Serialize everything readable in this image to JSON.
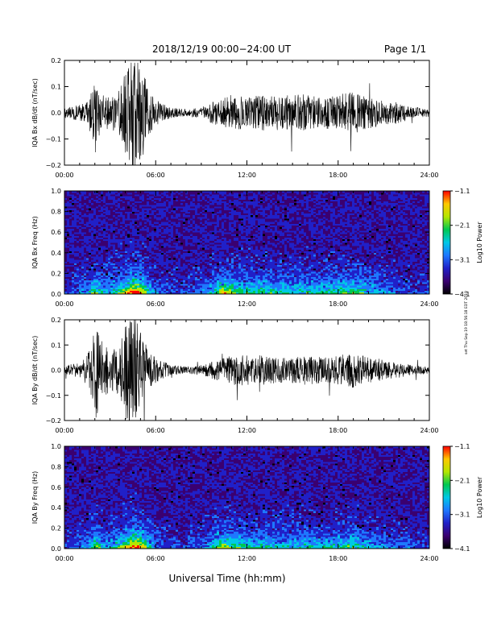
{
  "header": {
    "title": "2018/12/19   00:00−24:00 UT",
    "page": "Page 1/1"
  },
  "footer": {
    "xlabel": "Universal Time (hh:mm)"
  },
  "side_note": "set Thu Sep 19 18:56:18 EDT 2019",
  "colormap": [
    "#000000",
    "#3a0070",
    "#2020c8",
    "#1e78ff",
    "#00c8e6",
    "#00c850",
    "#b4e600",
    "#ffc800",
    "#ff0000"
  ],
  "chart_data": [
    {
      "type": "line",
      "name": "bx-waveform",
      "ylabel": "IQA Bx dB/dt (nT/sec)",
      "ylim": [
        -0.2,
        0.2
      ],
      "yticks": [
        -0.2,
        -0.1,
        0.0,
        0.1,
        0.2
      ],
      "ytick_labels": [
        "−0.2",
        "−0.1",
        "0.0",
        "0.1",
        "0.2"
      ],
      "xlim": [
        0,
        24
      ],
      "xticks": [
        0,
        6,
        12,
        18,
        24
      ],
      "xtick_labels": [
        "00:00",
        "06:00",
        "12:00",
        "18:00",
        "24:00"
      ],
      "x_unit": "hours UT",
      "envelope": {
        "x": [
          0,
          1,
          1.5,
          2,
          2.5,
          3,
          3.5,
          4,
          4.5,
          5,
          5.5,
          6,
          7,
          8,
          9,
          10,
          11,
          12,
          13,
          14,
          15,
          16,
          17,
          18,
          19,
          20,
          21,
          22,
          23,
          24
        ],
        "amplitude": [
          0.02,
          0.03,
          0.05,
          0.12,
          0.07,
          0.06,
          0.08,
          0.15,
          0.22,
          0.2,
          0.09,
          0.05,
          0.02,
          0.015,
          0.02,
          0.05,
          0.07,
          0.06,
          0.07,
          0.06,
          0.07,
          0.07,
          0.06,
          0.07,
          0.08,
          0.06,
          0.05,
          0.04,
          0.02,
          0.015
        ]
      }
    },
    {
      "type": "heatmap",
      "name": "bx-spectrogram",
      "ylabel": "IQA Bx Freq (Hz)",
      "ylim": [
        0.0,
        1.0
      ],
      "yticks": [
        0.0,
        0.2,
        0.4,
        0.6,
        0.8,
        1.0
      ],
      "ytick_labels": [
        "0.0",
        "0.2",
        "0.4",
        "0.6",
        "0.8",
        "1.0"
      ],
      "xlim": [
        0,
        24
      ],
      "xticks": [
        0,
        6,
        12,
        18,
        24
      ],
      "xtick_labels": [
        "00:00",
        "06:00",
        "12:00",
        "18:00",
        "24:00"
      ],
      "colorbar": {
        "label": "Log10 Power",
        "range": [
          -4.1,
          -1.1
        ],
        "ticks": [
          "−1.1",
          "−2.1",
          "−3.1",
          "−4.1"
        ]
      },
      "activity": {
        "x": [
          0,
          1.5,
          2,
          2.5,
          3,
          3.5,
          4,
          4.5,
          5,
          5.5,
          6,
          8,
          9.5,
          10,
          10.5,
          11,
          12,
          13,
          14,
          15,
          16,
          17,
          18,
          19,
          20,
          22,
          24
        ],
        "level": [
          0.1,
          0.3,
          0.6,
          0.4,
          0.4,
          0.5,
          0.7,
          1.0,
          0.9,
          0.5,
          0.2,
          0.1,
          0.3,
          0.6,
          0.8,
          0.7,
          0.5,
          0.5,
          0.45,
          0.45,
          0.5,
          0.45,
          0.5,
          0.6,
          0.4,
          0.2,
          0.1
        ]
      }
    },
    {
      "type": "line",
      "name": "by-waveform",
      "ylabel": "IQA By dB/dt (nT/sec)",
      "ylim": [
        -0.2,
        0.2
      ],
      "yticks": [
        -0.2,
        -0.1,
        0.0,
        0.1,
        0.2
      ],
      "ytick_labels": [
        "−0.2",
        "−0.1",
        "0.0",
        "0.1",
        "0.2"
      ],
      "xlim": [
        0,
        24
      ],
      "xticks": [
        0,
        6,
        12,
        18,
        24
      ],
      "xtick_labels": [
        "00:00",
        "06:00",
        "12:00",
        "18:00",
        "24:00"
      ],
      "x_unit": "hours UT",
      "envelope": {
        "x": [
          0,
          1,
          1.5,
          2,
          2.5,
          3,
          3.5,
          4,
          4.5,
          5,
          5.5,
          6,
          7,
          8,
          9,
          10,
          11,
          12,
          13,
          14,
          15,
          16,
          17,
          18,
          19,
          20,
          21,
          22,
          23,
          24
        ],
        "amplitude": [
          0.02,
          0.03,
          0.06,
          0.2,
          0.12,
          0.08,
          0.1,
          0.2,
          0.22,
          0.18,
          0.08,
          0.05,
          0.02,
          0.015,
          0.02,
          0.04,
          0.06,
          0.06,
          0.06,
          0.05,
          0.05,
          0.06,
          0.05,
          0.06,
          0.07,
          0.05,
          0.04,
          0.03,
          0.02,
          0.015
        ]
      }
    },
    {
      "type": "heatmap",
      "name": "by-spectrogram",
      "ylabel": "IQA By Freq (Hz)",
      "ylim": [
        0.0,
        1.0
      ],
      "yticks": [
        0.0,
        0.2,
        0.4,
        0.6,
        0.8,
        1.0
      ],
      "ytick_labels": [
        "0.0",
        "0.2",
        "0.4",
        "0.6",
        "0.8",
        "1.0"
      ],
      "xlim": [
        0,
        24
      ],
      "xticks": [
        0,
        6,
        12,
        18,
        24
      ],
      "xtick_labels": [
        "00:00",
        "06:00",
        "12:00",
        "18:00",
        "24:00"
      ],
      "colorbar": {
        "label": "Log10 Power",
        "range": [
          -4.1,
          -1.1
        ],
        "ticks": [
          "−1.1",
          "−2.1",
          "−3.1",
          "−4.1"
        ]
      },
      "activity": {
        "x": [
          0,
          1.5,
          2,
          2.5,
          3,
          3.5,
          4,
          4.5,
          5,
          5.5,
          6,
          8,
          9.5,
          10,
          10.5,
          11,
          12,
          13,
          14,
          15,
          16,
          17,
          18,
          19,
          20,
          22,
          24
        ],
        "level": [
          0.1,
          0.3,
          0.6,
          0.4,
          0.4,
          0.5,
          0.7,
          1.0,
          0.9,
          0.5,
          0.2,
          0.1,
          0.3,
          0.55,
          0.7,
          0.6,
          0.45,
          0.45,
          0.4,
          0.4,
          0.45,
          0.4,
          0.45,
          0.55,
          0.35,
          0.2,
          0.1
        ]
      }
    }
  ]
}
